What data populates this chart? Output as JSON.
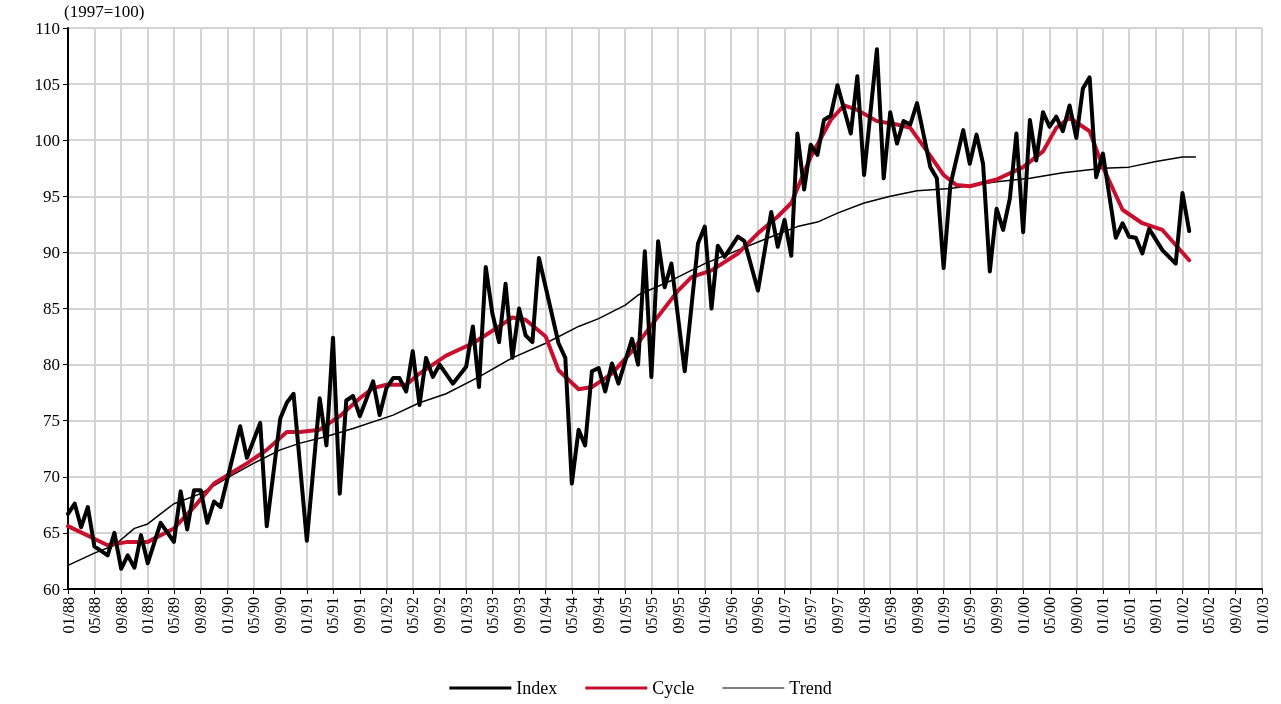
{
  "chart_data": {
    "type": "line",
    "ylabel": "(1997=100)",
    "xlim": [
      "1988-01",
      "2003-01"
    ],
    "xticks": [
      {
        "value": "1988-01",
        "label": "01/88"
      },
      {
        "value": "1988-05",
        "label": "05/88"
      },
      {
        "value": "1988-09",
        "label": "09/88"
      },
      {
        "value": "1989-01",
        "label": "01/89"
      },
      {
        "value": "1989-05",
        "label": "05/89"
      },
      {
        "value": "1989-09",
        "label": "09/89"
      },
      {
        "value": "1990-01",
        "label": "01/90"
      },
      {
        "value": "1990-05",
        "label": "05/90"
      },
      {
        "value": "1990-09",
        "label": "09/90"
      },
      {
        "value": "1991-01",
        "label": "01/91"
      },
      {
        "value": "1991-05",
        "label": "05/91"
      },
      {
        "value": "1991-09",
        "label": "09/91"
      },
      {
        "value": "1992-01",
        "label": "01/92"
      },
      {
        "value": "1992-05",
        "label": "05/92"
      },
      {
        "value": "1992-09",
        "label": "09/92"
      },
      {
        "value": "1993-01",
        "label": "01/93"
      },
      {
        "value": "1993-05",
        "label": "05/93"
      },
      {
        "value": "1993-09",
        "label": "09/93"
      },
      {
        "value": "1994-01",
        "label": "01/94"
      },
      {
        "value": "1994-05",
        "label": "05/94"
      },
      {
        "value": "1994-09",
        "label": "09/94"
      },
      {
        "value": "1995-01",
        "label": "01/95"
      },
      {
        "value": "1995-05",
        "label": "05/95"
      },
      {
        "value": "1995-09",
        "label": "09/95"
      },
      {
        "value": "1996-01",
        "label": "01/96"
      },
      {
        "value": "1996-05",
        "label": "05/96"
      },
      {
        "value": "1996-09",
        "label": "09/96"
      },
      {
        "value": "1997-01",
        "label": "01/97"
      },
      {
        "value": "1997-05",
        "label": "05/97"
      },
      {
        "value": "1997-09",
        "label": "09/97"
      },
      {
        "value": "1998-01",
        "label": "01/98"
      },
      {
        "value": "1998-05",
        "label": "05/98"
      },
      {
        "value": "1998-09",
        "label": "09/98"
      },
      {
        "value": "1999-01",
        "label": "01/99"
      },
      {
        "value": "1999-05",
        "label": "05/99"
      },
      {
        "value": "1999-09",
        "label": "09/99"
      },
      {
        "value": "2000-01",
        "label": "01/00"
      },
      {
        "value": "2000-05",
        "label": "05/00"
      },
      {
        "value": "2000-09",
        "label": "09/00"
      },
      {
        "value": "2001-01",
        "label": "01/01"
      },
      {
        "value": "2001-05",
        "label": "05/01"
      },
      {
        "value": "2001-09",
        "label": "09/01"
      },
      {
        "value": "2002-01",
        "label": "01/02"
      },
      {
        "value": "2002-05",
        "label": "05/02"
      },
      {
        "value": "2002-09",
        "label": "09/02"
      },
      {
        "value": "2003-01",
        "label": "01/03"
      }
    ],
    "ylim": [
      60,
      110
    ],
    "yticks": [
      60,
      65,
      70,
      75,
      80,
      85,
      90,
      95,
      100,
      105,
      110
    ],
    "grid": true,
    "legend": "bottom",
    "marker": "none",
    "line_style": "solid",
    "series": [
      {
        "name": "Index",
        "color": "#000000",
        "x": [
          "1988-01",
          "1988-02",
          "1988-03",
          "1988-04",
          "1988-05",
          "1988-07",
          "1988-08",
          "1988-09",
          "1988-10",
          "1988-11",
          "1988-12",
          "1989-01",
          "1989-03",
          "1989-05",
          "1989-06",
          "1989-07",
          "1989-08",
          "1989-09",
          "1989-10",
          "1989-11",
          "1989-12",
          "1990-03",
          "1990-04",
          "1990-06",
          "1990-07",
          "1990-09",
          "1990-10",
          "1990-11",
          "1991-01",
          "1991-03",
          "1991-04",
          "1991-05",
          "1991-06",
          "1991-07",
          "1991-08",
          "1991-09",
          "1991-11",
          "1991-12",
          "1992-01",
          "1992-02",
          "1992-03",
          "1992-04",
          "1992-05",
          "1992-06",
          "1992-07",
          "1992-08",
          "1992-09",
          "1992-11",
          "1993-01",
          "1993-02",
          "1993-03",
          "1993-04",
          "1993-05",
          "1993-06",
          "1993-07",
          "1993-08",
          "1993-09",
          "1993-10",
          "1993-11",
          "1993-12",
          "1994-01",
          "1994-03",
          "1994-04",
          "1994-05",
          "1994-06",
          "1994-07",
          "1994-08",
          "1994-09",
          "1994-10",
          "1994-11",
          "1994-12",
          "1995-02",
          "1995-03",
          "1995-04",
          "1995-05",
          "1995-06",
          "1995-07",
          "1995-08",
          "1995-10",
          "1995-12",
          "1996-01",
          "1996-02",
          "1996-03",
          "1996-04",
          "1996-06",
          "1996-07",
          "1996-09",
          "1996-11",
          "1996-12",
          "1997-01",
          "1997-02",
          "1997-03",
          "1997-04",
          "1997-05",
          "1997-06",
          "1997-07",
          "1997-08",
          "1997-09",
          "1997-11",
          "1997-12",
          "1998-01",
          "1998-03",
          "1998-04",
          "1998-05",
          "1998-06",
          "1998-07",
          "1998-08",
          "1998-09",
          "1998-11",
          "1998-12",
          "1999-01",
          "1999-02",
          "1999-04",
          "1999-05",
          "1999-06",
          "1999-07",
          "1999-08",
          "1999-09",
          "1999-10",
          "1999-11",
          "1999-12",
          "2000-01",
          "2000-02",
          "2000-03",
          "2000-04",
          "2000-05",
          "2000-06",
          "2000-07",
          "2000-08",
          "2000-09",
          "2000-10",
          "2000-11",
          "2000-12",
          "2001-01",
          "2001-03",
          "2001-04",
          "2001-05",
          "2001-06",
          "2001-07",
          "2001-08",
          "2001-10",
          "2001-12",
          "2002-01",
          "2002-02"
        ],
        "values": [
          66.7,
          67.6,
          65.5,
          67.3,
          63.8,
          63.0,
          65.0,
          61.8,
          63.0,
          61.9,
          64.8,
          62.3,
          65.9,
          64.2,
          68.7,
          65.3,
          68.8,
          68.8,
          65.9,
          67.8,
          67.3,
          74.5,
          71.7,
          74.8,
          65.6,
          75.2,
          76.6,
          77.4,
          64.3,
          77.0,
          72.8,
          82.4,
          68.5,
          76.8,
          77.2,
          75.4,
          78.5,
          75.5,
          77.9,
          78.8,
          78.8,
          77.6,
          81.2,
          76.4,
          80.6,
          78.9,
          80.0,
          78.3,
          79.8,
          83.4,
          78.0,
          88.7,
          84.6,
          82.0,
          87.2,
          80.6,
          85.0,
          82.6,
          82.0,
          89.5,
          86.9,
          81.9,
          80.6,
          69.4,
          74.2,
          72.8,
          79.4,
          79.7,
          77.6,
          80.1,
          78.3,
          82.3,
          80.0,
          90.1,
          78.9,
          91.0,
          86.9,
          89.0,
          79.4,
          90.8,
          92.3,
          85.0,
          90.6,
          89.6,
          91.4,
          91.0,
          86.6,
          93.6,
          90.5,
          92.9,
          89.7,
          100.6,
          95.6,
          99.6,
          98.7,
          101.8,
          102.2,
          104.9,
          100.6,
          105.7,
          96.9,
          108.1,
          96.6,
          102.5,
          99.7,
          101.7,
          101.4,
          103.3,
          97.6,
          96.6,
          88.6,
          96.0,
          100.9,
          97.9,
          100.5,
          97.9,
          88.3,
          93.9,
          92.0,
          94.8,
          100.6,
          91.8,
          101.8,
          98.2,
          102.5,
          101.2,
          102.1,
          100.8,
          103.1,
          100.2,
          104.6,
          105.6,
          96.7,
          98.8,
          91.3,
          92.6,
          91.4,
          91.3,
          89.9,
          92.1,
          90.2,
          89.0,
          95.3,
          91.9
        ]
      },
      {
        "name": "Cycle",
        "color": "#c8102e",
        "x": [
          "1988-01",
          "1988-07",
          "1988-10",
          "1989-01",
          "1989-05",
          "1989-08",
          "1989-11",
          "1990-04",
          "1990-07",
          "1990-10",
          "1990-12",
          "1991-03",
          "1991-06",
          "1991-09",
          "1991-11",
          "1992-01",
          "1992-04",
          "1992-06",
          "1992-10",
          "1993-02",
          "1993-06",
          "1993-08",
          "1993-10",
          "1994-01",
          "1994-03",
          "1994-06",
          "1994-08",
          "1994-11",
          "1995-02",
          "1995-06",
          "1995-09",
          "1995-11",
          "1996-02",
          "1996-06",
          "1996-09",
          "1996-12",
          "1997-02",
          "1997-05",
          "1997-08",
          "1997-10",
          "1997-12",
          "1998-03",
          "1998-06",
          "1998-08",
          "1998-11",
          "1999-01",
          "1999-03",
          "1999-05",
          "1999-09",
          "2000-01",
          "2000-04",
          "2000-06",
          "2000-08",
          "2000-11",
          "2001-01",
          "2001-04",
          "2001-07",
          "2001-10",
          "2002-02"
        ],
        "values": [
          65.6,
          63.9,
          64.2,
          64.2,
          65.4,
          67.3,
          69.4,
          71.2,
          72.4,
          74.0,
          74.0,
          74.2,
          75.4,
          77.0,
          77.9,
          78.2,
          78.2,
          79.2,
          80.8,
          81.9,
          83.4,
          84.2,
          84.0,
          82.5,
          79.5,
          77.8,
          78.0,
          79.2,
          81.2,
          84.3,
          86.6,
          87.8,
          88.4,
          89.9,
          91.7,
          93.2,
          94.4,
          98.5,
          101.8,
          103.1,
          102.7,
          101.7,
          101.4,
          101.1,
          98.6,
          96.9,
          96.0,
          95.9,
          96.5,
          97.6,
          99.0,
          101.1,
          102.0,
          100.8,
          97.6,
          93.8,
          92.6,
          92.0,
          89.3
        ]
      },
      {
        "name": "Trend",
        "color": "#000000",
        "x": [
          "1988-01",
          "1988-05",
          "1988-08",
          "1988-11",
          "1989-01",
          "1989-03",
          "1989-05",
          "1989-09",
          "1990-01",
          "1990-05",
          "1990-09",
          "1990-12",
          "1991-04",
          "1991-08",
          "1992-02",
          "1992-06",
          "1992-10",
          "1993-03",
          "1993-08",
          "1994-01",
          "1994-06",
          "1994-09",
          "1995-01",
          "1995-03",
          "1995-08",
          "1996-01",
          "1996-06",
          "1996-11",
          "1997-03",
          "1997-06",
          "1997-09",
          "1998-01",
          "1998-05",
          "1998-09",
          "1999-02",
          "1999-09",
          "2000-02",
          "2000-07",
          "2001-01",
          "2001-05",
          "2001-09",
          "2002-01",
          "2002-03"
        ],
        "values": [
          62.1,
          63.2,
          63.9,
          65.4,
          65.8,
          66.7,
          67.6,
          68.5,
          69.9,
          71.2,
          72.4,
          73.0,
          73.6,
          74.3,
          75.5,
          76.6,
          77.4,
          78.9,
          80.6,
          81.9,
          83.4,
          84.1,
          85.3,
          86.2,
          87.5,
          89.0,
          90.2,
          91.4,
          92.3,
          92.7,
          93.5,
          94.4,
          95.0,
          95.5,
          95.7,
          96.3,
          96.6,
          97.1,
          97.5,
          97.6,
          98.1,
          98.5,
          98.5
        ]
      }
    ]
  }
}
